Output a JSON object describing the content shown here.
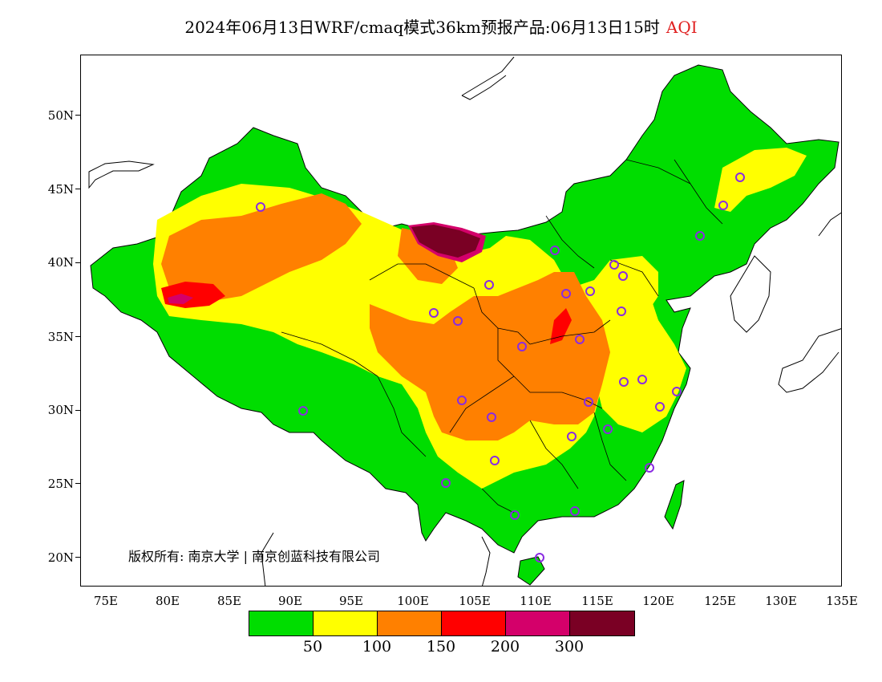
{
  "title": {
    "main": "2024年06月13日WRF/cmaq模式36km预报产品:06月13日15时",
    "variable": "AQI"
  },
  "lat_labels": [
    "50N",
    "45N",
    "40N",
    "35N",
    "30N",
    "25N",
    "20N"
  ],
  "lon_labels": [
    "75E",
    "80E",
    "85E",
    "90E",
    "95E",
    "100E",
    "105E",
    "110E",
    "115E",
    "120E",
    "125E",
    "130E",
    "135E"
  ],
  "copyright": "版权所有: 南京大学 | 南京创蓝科技有限公司",
  "legend": {
    "colors": [
      "#00dd00",
      "#ffff00",
      "#ff8000",
      "#ff0000",
      "#d4006a",
      "#7a0024"
    ],
    "labels": [
      "50",
      "100",
      "150",
      "200",
      "300"
    ]
  },
  "colors": {
    "station_marker": "#8a2be2",
    "border": "#000000"
  }
}
